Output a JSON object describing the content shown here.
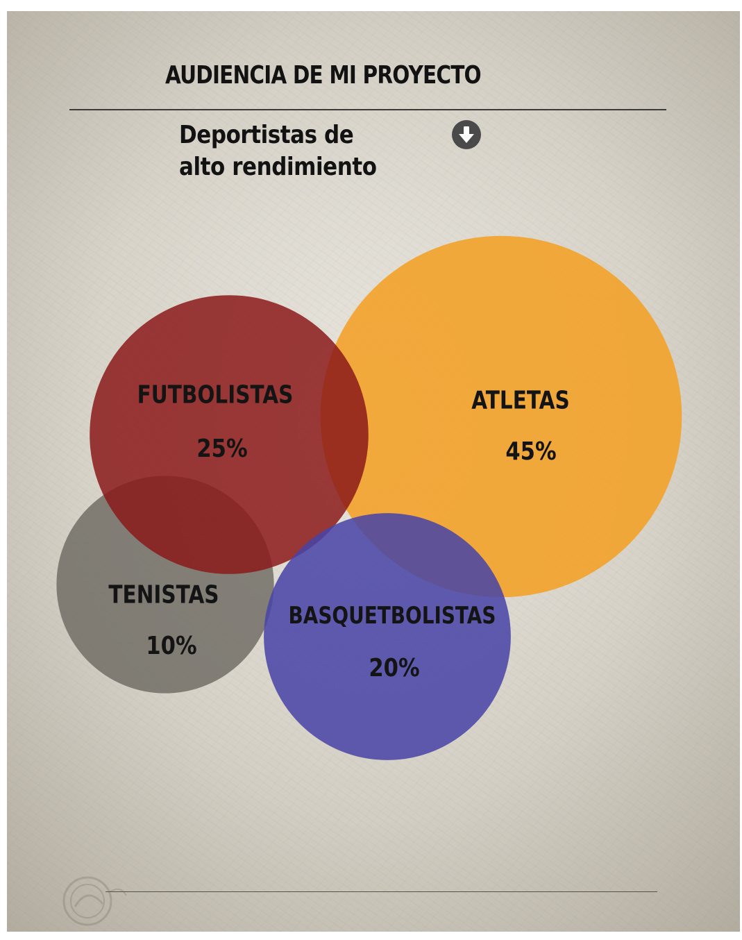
{
  "header": {
    "title": "AUDIENCIA DE MI PROYECTO",
    "subtitle": "Deportistas de alto rendimiento",
    "subtitle_icon": "arrow-down-circle-icon"
  },
  "chart_data": {
    "type": "bubble",
    "title": "AUDIENCIA DE MI PROYECTO",
    "subtitle": "Deportistas de alto rendimiento",
    "unit": "%",
    "series": [
      {
        "name": "FUTBOLISTAS",
        "value": 25,
        "label": "25%",
        "color": "#8b1a1a"
      },
      {
        "name": "ATLETAS",
        "value": 45,
        "label": "45%",
        "color": "#f3a22a"
      },
      {
        "name": "TENISTAS",
        "value": 10,
        "label": "10%",
        "color": "#6e6a63"
      },
      {
        "name": "BASQUETBOLISTAS",
        "value": 20,
        "label": "20%",
        "color": "#4844a6"
      }
    ]
  }
}
